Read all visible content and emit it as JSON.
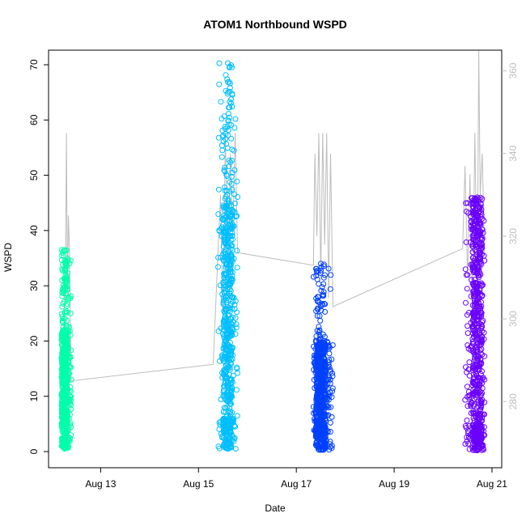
{
  "chart_data": {
    "type": "scatter",
    "title": "ATOM1 Northbound WSPD",
    "xlabel": "Date",
    "ylabel": "WSPD",
    "x_unit": "days (August)",
    "x_ticks": [
      {
        "value": 13,
        "label": "Aug 13"
      },
      {
        "value": 15,
        "label": "Aug 15"
      },
      {
        "value": 17,
        "label": "Aug 17"
      },
      {
        "value": 19,
        "label": "Aug 19"
      },
      {
        "value": 21,
        "label": "Aug 21"
      }
    ],
    "y_ticks": [
      0,
      10,
      20,
      30,
      40,
      50,
      60,
      70
    ],
    "y2_ticks": [
      280,
      300,
      320,
      340,
      360
    ],
    "xlim": [
      12.1,
      21.1
    ],
    "ylim": [
      0,
      70
    ],
    "y2lim": [
      264,
      365
    ],
    "grid": false,
    "series": [
      {
        "color": "#00ffaa",
        "x_range": [
          12.2,
          12.4
        ],
        "x_dense_range": [
          12.2,
          12.32
        ],
        "y_min": 0.5,
        "y_max": 36.5,
        "y_typical": [
          5,
          22
        ]
      },
      {
        "color": "#00bfff",
        "x_range": [
          15.4,
          15.8
        ],
        "x_dense_range": [
          15.5,
          15.7
        ],
        "y_min": 0.5,
        "y_max": 70.3,
        "y_typical": [
          4,
          45
        ]
      },
      {
        "color": "#0040ff",
        "x_range": [
          17.35,
          17.75
        ],
        "x_dense_range": [
          17.4,
          17.6
        ],
        "y_min": 0.3,
        "y_max": 34,
        "y_typical": [
          3,
          20
        ]
      },
      {
        "color": "#6a00ff",
        "x_range": [
          20.45,
          20.85
        ],
        "x_dense_range": [
          20.6,
          20.8
        ],
        "y_min": 0.2,
        "y_max": 46,
        "y_typical": [
          3,
          40
        ]
      }
    ],
    "secondary_series": {
      "color": "#bdbdbd",
      "axis": "right",
      "type": "line",
      "points": [
        [
          12.2,
          278
        ],
        [
          12.25,
          300
        ],
        [
          12.28,
          312
        ],
        [
          12.3,
          345
        ],
        [
          12.32,
          305
        ],
        [
          12.34,
          325
        ],
        [
          12.36,
          318
        ],
        [
          12.4,
          285
        ],
        [
          15.3,
          289
        ],
        [
          15.45,
          330
        ],
        [
          15.5,
          300
        ],
        [
          15.55,
          345
        ],
        [
          15.6,
          310
        ],
        [
          15.65,
          340
        ],
        [
          15.7,
          320
        ],
        [
          15.75,
          345
        ],
        [
          15.8,
          316
        ],
        [
          17.35,
          313
        ],
        [
          17.38,
          340
        ],
        [
          17.42,
          320
        ],
        [
          17.46,
          345
        ],
        [
          17.5,
          310
        ],
        [
          17.54,
          345
        ],
        [
          17.58,
          318
        ],
        [
          17.62,
          345
        ],
        [
          17.66,
          305
        ],
        [
          17.7,
          340
        ],
        [
          17.75,
          303
        ],
        [
          20.4,
          317
        ],
        [
          20.45,
          337
        ],
        [
          20.5,
          310
        ],
        [
          20.55,
          335
        ],
        [
          20.6,
          300
        ],
        [
          20.65,
          345
        ],
        [
          20.7,
          305
        ],
        [
          20.73,
          365
        ],
        [
          20.76,
          330
        ],
        [
          20.8,
          340
        ],
        [
          20.85,
          315
        ]
      ]
    }
  }
}
